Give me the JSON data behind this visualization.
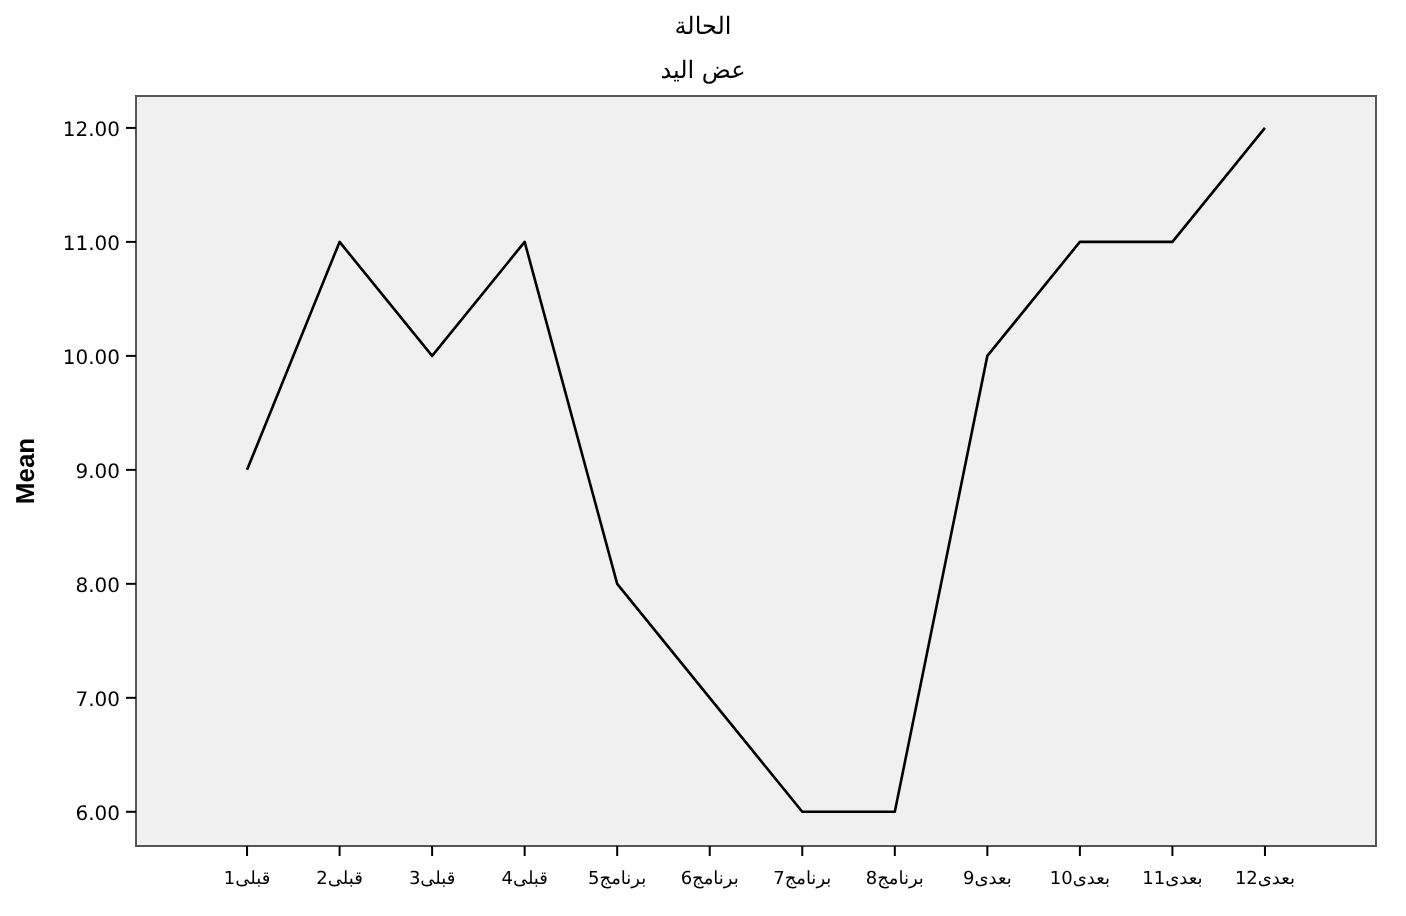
{
  "chart_data": {
    "type": "line",
    "title": "الحالة",
    "subtitle": "عض اليد",
    "ylabel": "Mean",
    "categories": [
      "قبلى1",
      "قبلى2",
      "قبلى3",
      "قبلى4",
      "برنامج5",
      "برنامج6",
      "برنامج7",
      "برنامج8",
      "بعدى9",
      "بعدى10",
      "بعدى11",
      "بعدى12"
    ],
    "series": [
      {
        "color": "#000000",
        "values": [
          9,
          11,
          10,
          11,
          8,
          7,
          6,
          6,
          10,
          11,
          11,
          12
        ]
      }
    ],
    "ylim": [
      5.7,
      12.28
    ],
    "yticks": [
      {
        "value": 6,
        "label": "6.00"
      },
      {
        "value": 7,
        "label": "7.00"
      },
      {
        "value": 8,
        "label": "8.00"
      },
      {
        "value": 9,
        "label": "9.00"
      },
      {
        "value": 10,
        "label": "10.00"
      },
      {
        "value": 11,
        "label": "11.00"
      },
      {
        "value": 12,
        "label": "12.00"
      }
    ],
    "grid": false,
    "marker": "none",
    "line_style": "solid"
  }
}
